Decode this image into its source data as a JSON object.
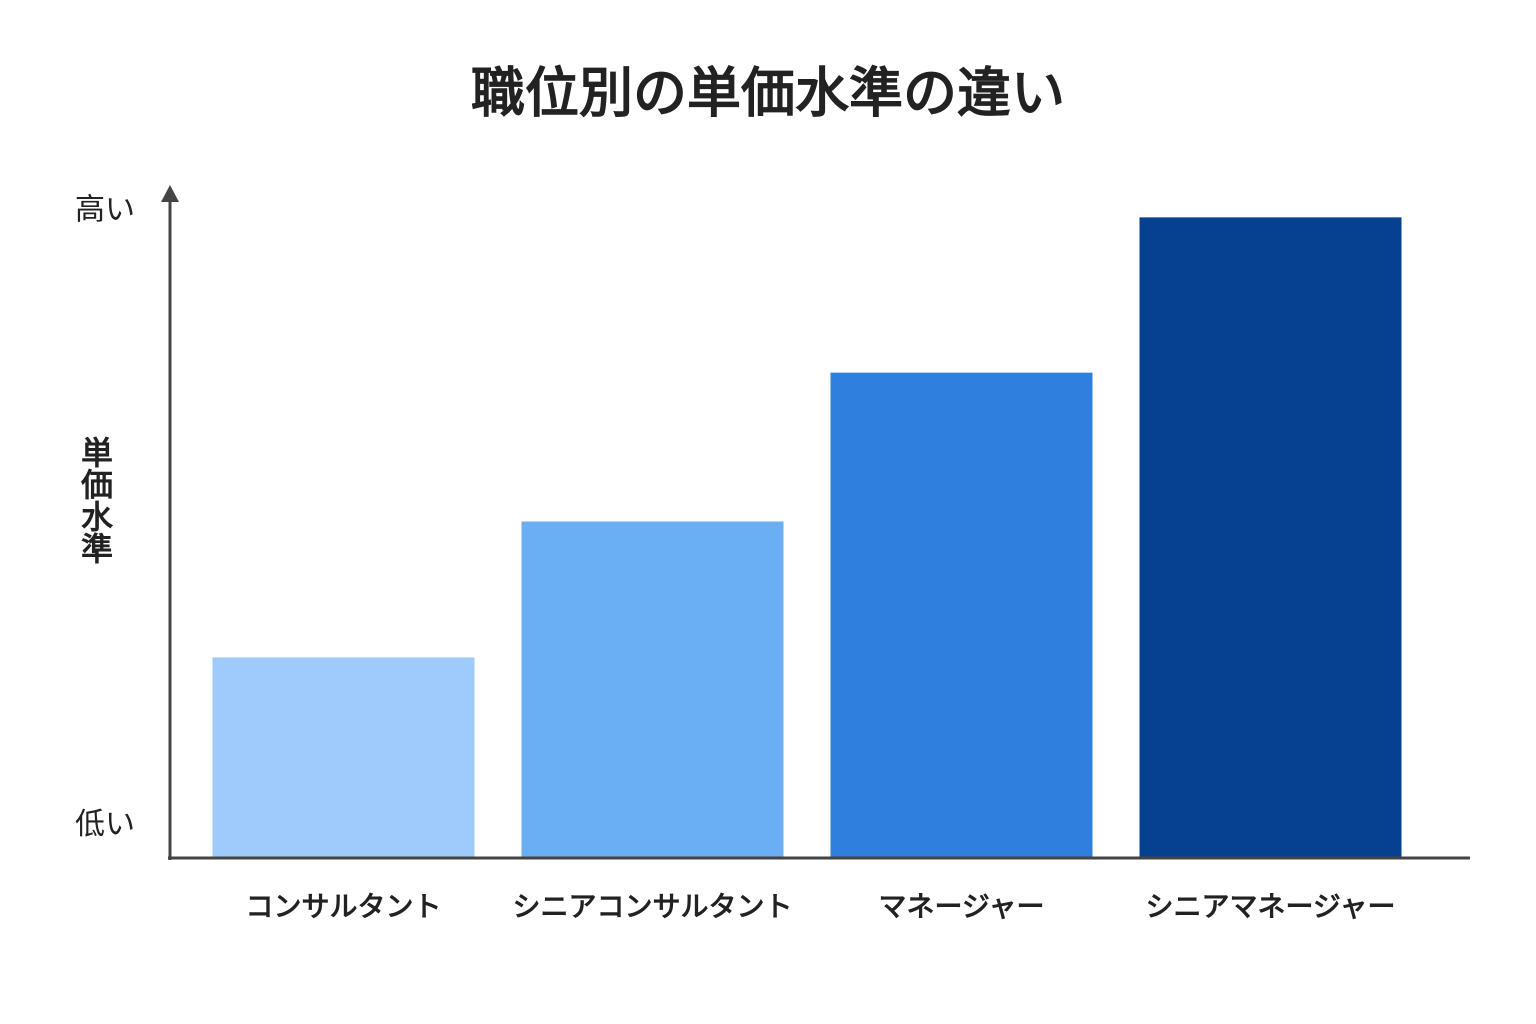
{
  "chart_data": {
    "type": "bar",
    "title": "職位別の単価水準の違い",
    "y_label": "単価水準",
    "categories": [
      "コンサルタント",
      "シニアコンサルタント",
      "マネージャー",
      "シニアマネージャー"
    ],
    "values": [
      31,
      52,
      75,
      99
    ],
    "colors": [
      "#9ecbf9",
      "#6aaff3",
      "#2f80de",
      "#05418f"
    ],
    "ylim": [
      0,
      104
    ],
    "yticks": [
      {
        "value": 100,
        "label": "高い"
      },
      {
        "value": 5,
        "label": "低い"
      }
    ],
    "grid": false
  }
}
